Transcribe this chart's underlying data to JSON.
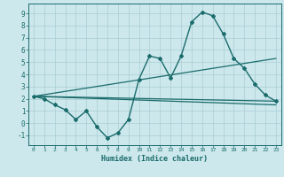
{
  "xlabel": "Humidex (Indice chaleur)",
  "xlim": [
    -0.5,
    23.5
  ],
  "ylim": [
    -1.8,
    9.8
  ],
  "yticks": [
    -1,
    0,
    1,
    2,
    3,
    4,
    5,
    6,
    7,
    8,
    9
  ],
  "xticks": [
    0,
    1,
    2,
    3,
    4,
    5,
    6,
    7,
    8,
    9,
    10,
    11,
    12,
    13,
    14,
    15,
    16,
    17,
    18,
    19,
    20,
    21,
    22,
    23
  ],
  "bg_color": "#cce8ec",
  "grid_color": "#aacdd4",
  "line_color": "#1a6b6b",
  "spine_color": "#1a6b6b",
  "series": [
    {
      "x": [
        0,
        1,
        2,
        3,
        4,
        5,
        6,
        7,
        8,
        9,
        10,
        11,
        12,
        13,
        14,
        15,
        16,
        17,
        18,
        19,
        20,
        21,
        22,
        23
      ],
      "y": [
        2.2,
        2.0,
        1.5,
        1.1,
        0.3,
        1.0,
        -0.3,
        -1.2,
        -0.8,
        0.3,
        3.6,
        5.5,
        5.3,
        3.7,
        5.5,
        8.3,
        9.1,
        8.8,
        7.3,
        5.3,
        4.5,
        3.2,
        2.3,
        1.8
      ],
      "marker": "D",
      "markersize": 2.0,
      "linewidth": 1.0
    },
    {
      "x": [
        0,
        23
      ],
      "y": [
        2.2,
        1.8
      ],
      "marker": null,
      "linewidth": 0.9
    },
    {
      "x": [
        0,
        23
      ],
      "y": [
        2.2,
        5.3
      ],
      "marker": null,
      "linewidth": 0.9
    },
    {
      "x": [
        0,
        23
      ],
      "y": [
        2.2,
        1.5
      ],
      "marker": null,
      "linewidth": 0.9
    }
  ]
}
